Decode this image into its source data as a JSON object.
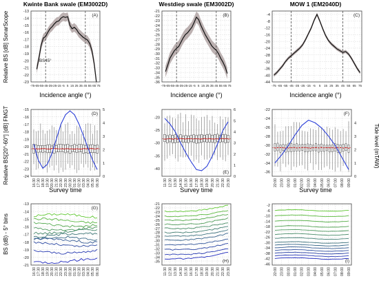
{
  "figure": {
    "column_titles": [
      "Kwinte Bank swale (EM3002D)",
      "Westdiep swale (EM3002D)",
      "MOW 1 (EM2040D)"
    ],
    "row_y_labels": [
      "Relative BS [dB] SonarScope",
      "Relative BS[20°-60°] [dB] FMGT",
      "BS (dB) - 5° bins"
    ],
    "x_label_row1": "Incidence angle (°)",
    "x_label_row2": "Survey time",
    "right_axis_label": "Tide level (mTAW)"
  },
  "chart_data": [
    {
      "id": "A",
      "type": "line",
      "panel_label": "(A)",
      "ylim": [
        -23,
        -13
      ],
      "yticks": [
        -23,
        -22,
        -21,
        -20,
        -19,
        -18,
        -17,
        -16,
        -15,
        -14,
        -13
      ],
      "xlim": [
        -78,
        78
      ],
      "xticks": [
        -75,
        -65,
        -55,
        -45,
        -35,
        -25,
        -15,
        -5,
        5,
        15,
        25,
        35,
        45,
        55,
        65,
        75
      ],
      "vlines": [
        -45,
        45
      ],
      "annotation": "BS45°",
      "x": [
        -65,
        -60,
        -55,
        -50,
        -45,
        -40,
        -35,
        -30,
        -25,
        -20,
        -15,
        -10,
        -5,
        0,
        5,
        10,
        15,
        20,
        25,
        30,
        35,
        40,
        45,
        50,
        55,
        60,
        65,
        70
      ],
      "y": [
        -21.2,
        -19.6,
        -17.8,
        -16.8,
        -16.6,
        -16.0,
        -15.5,
        -15.2,
        -14.8,
        -14.5,
        -14.4,
        -14.0,
        -13.8,
        -13.9,
        -13.8,
        -15.0,
        -15.5,
        -15.3,
        -15.6,
        -16.1,
        -16.4,
        -16.7,
        -16.9,
        -17.1,
        -17.6,
        -18.6,
        -20.4,
        -23.0
      ],
      "spread": 0.6
    },
    {
      "id": "B",
      "type": "line",
      "panel_label": "(B)",
      "ylim": [
        -36,
        -21
      ],
      "yticks": [
        -36,
        -35,
        -34,
        -33,
        -32,
        -31,
        -30,
        -29,
        -28,
        -27,
        -26,
        -25,
        -24,
        -23,
        -22,
        -21
      ],
      "xlim": [
        -78,
        78
      ],
      "xticks": [
        -75,
        -65,
        -55,
        -45,
        -35,
        -25,
        -15,
        -5,
        5,
        15,
        25,
        35,
        45,
        55,
        65,
        75
      ],
      "vlines": [
        -45,
        45
      ],
      "x": [
        -70,
        -65,
        -60,
        -55,
        -50,
        -45,
        -40,
        -35,
        -30,
        -25,
        -20,
        -15,
        -10,
        -5,
        0,
        5,
        10,
        15,
        20,
        25,
        30,
        35,
        40,
        45,
        50,
        55,
        60,
        65,
        70
      ],
      "y": [
        -33.8,
        -32.5,
        -31.0,
        -30.2,
        -29.4,
        -28.9,
        -28.5,
        -27.6,
        -26.7,
        -26.0,
        -25.6,
        -25.0,
        -24.4,
        -23.4,
        -22.3,
        -22.8,
        -24.0,
        -25.0,
        -26.0,
        -26.8,
        -27.6,
        -28.4,
        -28.9,
        -29.3,
        -30.0,
        -31.0,
        -31.8,
        -32.8,
        -34.2
      ],
      "spread": 1.2
    },
    {
      "id": "C",
      "type": "line",
      "panel_label": "(C)",
      "ylim": [
        -44,
        -2
      ],
      "yticks": [
        -44,
        -40,
        -36,
        -32,
        -28,
        -24,
        -20,
        -16,
        -12,
        -8,
        -4
      ],
      "xlim": [
        -78,
        78
      ],
      "xticks": [
        -75,
        -65,
        -55,
        -45,
        -35,
        -25,
        -15,
        -5,
        5,
        15,
        25,
        35,
        45,
        55,
        65,
        75
      ],
      "vlines": [
        -45,
        45
      ],
      "x": [
        -75,
        -70,
        -65,
        -60,
        -55,
        -50,
        -45,
        -40,
        -35,
        -30,
        -25,
        -20,
        -15,
        -10,
        -5,
        0,
        5,
        10,
        15,
        20,
        25,
        30,
        35,
        40,
        45,
        50,
        55,
        60,
        65,
        70,
        75
      ],
      "y": [
        -40.0,
        -38.5,
        -36.5,
        -34.5,
        -32.0,
        -30.0,
        -28.5,
        -27.0,
        -25.5,
        -24.0,
        -22.0,
        -19.0,
        -15.5,
        -12.0,
        -7.5,
        -4.0,
        -8.0,
        -12.5,
        -16.5,
        -19.5,
        -21.5,
        -23.0,
        -24.5,
        -25.5,
        -26.5,
        -26.0,
        -27.5,
        -30.0,
        -33.0,
        -36.0,
        -38.5
      ],
      "spread": 1.0
    },
    {
      "id": "D",
      "type": "box",
      "panel_label": "(D)",
      "ylim": [
        -24,
        -15
      ],
      "yticks": [
        -24,
        -23,
        -22,
        -21,
        -20,
        -19,
        -18,
        -17,
        -16,
        -15
      ],
      "y2lim": [
        0,
        5
      ],
      "y2ticks": [
        0,
        1,
        2,
        3,
        4,
        5
      ],
      "categories": [
        "16:30",
        "17:30",
        "18:30",
        "19:30",
        "20:30",
        "21:30",
        "22:30",
        "23:30",
        "00:30",
        "01:30",
        "02:30",
        "03:30",
        "04:30",
        "05:30",
        "06:30"
      ],
      "median": -20.3,
      "tide_hours": [
        0,
        1,
        2,
        3,
        4,
        5,
        6,
        7,
        8,
        9,
        10,
        11,
        12,
        13,
        14
      ],
      "tide": [
        2.4,
        1.2,
        0.6,
        0.9,
        1.7,
        2.8,
        3.9,
        4.6,
        4.9,
        4.6,
        3.9,
        3.0,
        2.1,
        1.2,
        0.5
      ]
    },
    {
      "id": "E",
      "type": "box",
      "panel_label": "(E)",
      "ylim": [
        -43,
        -17
      ],
      "yticks": [
        -40,
        -35,
        -30,
        -25,
        -20
      ],
      "y2lim": [
        0,
        6
      ],
      "y2ticks": [
        0,
        1,
        2,
        3,
        4,
        5,
        6
      ],
      "categories": [
        "11:30",
        "12:30",
        "13:30",
        "14:30",
        "15:30",
        "16:30",
        "17:30",
        "18:30",
        "19:30",
        "20:30",
        "21:30",
        "22:30",
        "23:30"
      ],
      "median": -28.4,
      "tide_hours": [
        0,
        1,
        2,
        3,
        4,
        5,
        6,
        7,
        8,
        9,
        10,
        11,
        12
      ],
      "tide": [
        5.2,
        4.7,
        4.0,
        3.0,
        2.1,
        1.3,
        0.6,
        0.5,
        0.9,
        1.8,
        2.9,
        4.1,
        4.9
      ]
    },
    {
      "id": "F",
      "type": "box",
      "panel_label": "(F)",
      "ylim": [
        -37,
        -22
      ],
      "yticks": [
        -36,
        -34,
        -32,
        -30,
        -28,
        -26,
        -24,
        -22
      ],
      "y2lim": [
        0,
        5
      ],
      "y2ticks": [
        0,
        1,
        2,
        3,
        4
      ],
      "categories": [
        "22:00",
        "23:00",
        "00:00",
        "01:00",
        "02:00",
        "03:00",
        "04:00",
        "05:00",
        "06:00",
        "07:00",
        "08:00",
        "09:00"
      ],
      "median": -30.6,
      "tide_hours": [
        0,
        1,
        2,
        3,
        4,
        5,
        6,
        7,
        8,
        9,
        10,
        11
      ],
      "tide": [
        1.0,
        1.6,
        2.3,
        3.1,
        3.8,
        4.2,
        4.0,
        3.6,
        3.0,
        2.3,
        1.4,
        0.5
      ]
    },
    {
      "id": "G",
      "type": "line",
      "panel_label": "(G)",
      "ylim": [
        -21,
        -13
      ],
      "yticks": [
        -21,
        -20,
        -19,
        -18,
        -17,
        -16,
        -15,
        -14,
        -13
      ],
      "categories": [
        "16:30",
        "17:30",
        "18:30",
        "19:30",
        "20:30",
        "21:30",
        "22:30",
        "23:30",
        "00:30",
        "01:30",
        "02:30",
        "03:30",
        "04:30",
        "05:30",
        "06:30"
      ],
      "series_levels": [
        -14.6,
        -15.2,
        -15.7,
        -16.2,
        -16.6,
        -17.1,
        -17.6,
        -17.8,
        -18.3,
        -19.2,
        -20.4
      ]
    },
    {
      "id": "H",
      "type": "line",
      "panel_label": "(H)",
      "ylim": [
        -36,
        -21
      ],
      "yticks": [
        -35,
        -34,
        -33,
        -32,
        -31,
        -30,
        -29,
        -28,
        -27,
        -26,
        -25,
        -24,
        -23,
        -22,
        -21
      ],
      "categories": [
        "11:30",
        "12:30",
        "13:30",
        "14:30",
        "15:30",
        "16:30",
        "17:30",
        "18:30",
        "19:30",
        "20:30",
        "21:30",
        "22:30",
        "23:30"
      ],
      "series_levels": [
        -22.8,
        -24.0,
        -25.0,
        -26.0,
        -27.0,
        -28.0,
        -28.8,
        -29.8,
        -31.0,
        -32.2,
        -33.4,
        -34.4
      ]
    },
    {
      "id": "I",
      "type": "line",
      "panel_label": "(I)",
      "ylim": [
        -47,
        -1
      ],
      "yticks": [
        -46,
        -42,
        -38,
        -34,
        -30,
        -26,
        -22,
        -18,
        -14,
        -10,
        -6,
        -2
      ],
      "categories": [
        "22:00",
        "23:00",
        "00:00",
        "01:00",
        "02:00",
        "03:00",
        "04:00",
        "05:00",
        "06:00",
        "07:00",
        "08:00",
        "09:00"
      ],
      "series_levels": [
        -6,
        -10,
        -14,
        -18,
        -21,
        -24,
        -27,
        -30,
        -32,
        -34,
        -36,
        -38,
        -40,
        -42
      ]
    }
  ]
}
